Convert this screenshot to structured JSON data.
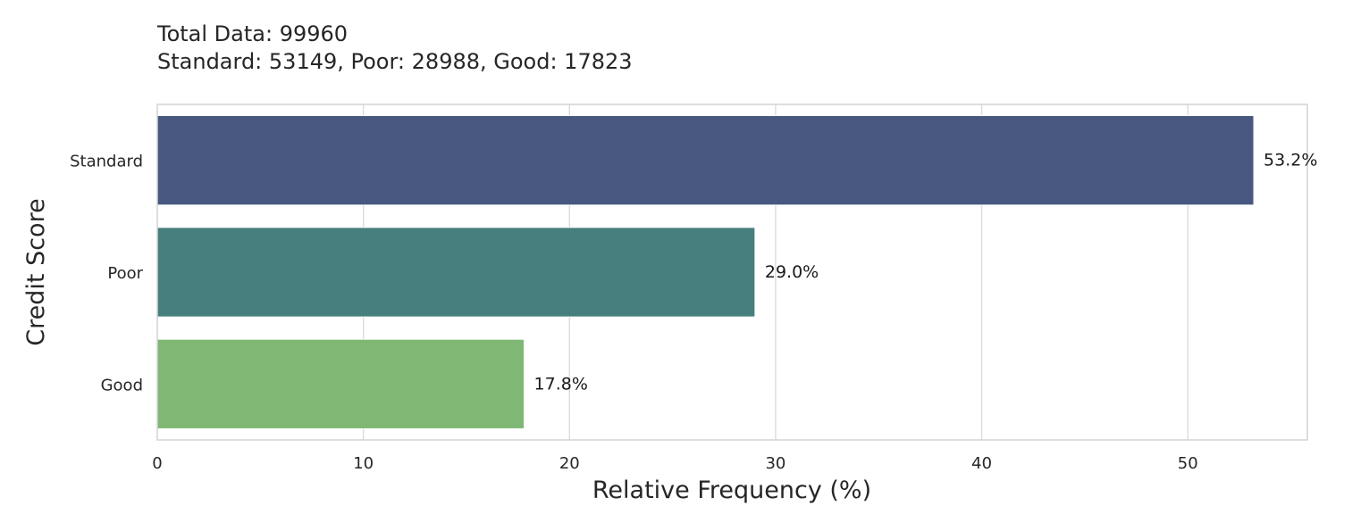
{
  "chart_data": {
    "type": "bar",
    "orientation": "horizontal",
    "title_lines": [
      "Total Data: 99960",
      "Standard: 53149, Poor: 28988, Good: 17823"
    ],
    "categories": [
      "Standard",
      "Poor",
      "Good"
    ],
    "values": [
      53.2,
      29.0,
      17.8
    ],
    "data_labels": [
      "53.2%",
      "29.0%",
      "17.8%"
    ],
    "colors": [
      "#48577f",
      "#467f7d",
      "#7fb874"
    ],
    "xlabel": "Relative Frequency (%)",
    "ylabel": "Credit Score",
    "xlim": [
      0,
      55.8
    ],
    "xticks": [
      0,
      10,
      20,
      30,
      40,
      50
    ],
    "xtick_labels": [
      "0",
      "10",
      "20",
      "30",
      "40",
      "50"
    ],
    "grid": "vertical"
  }
}
